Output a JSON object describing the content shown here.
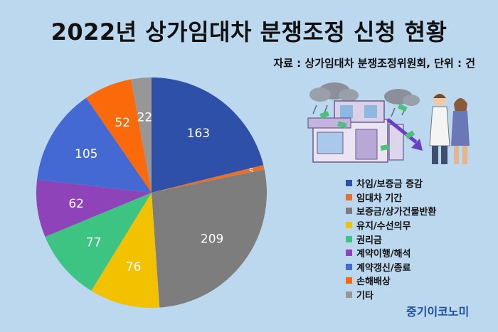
{
  "title": "2022년 상가임대차 분쟁조정 신청 현황",
  "source": "자료 : 상가임대차 분쟁조정위원회, 단위 : 건",
  "brand": "중기이코노미",
  "chart_data": {
    "type": "pie",
    "title": "2022년 상가임대차 분쟁조정 신청 현황",
    "unit": "건",
    "start_angle_deg": 0,
    "direction": "clockwise",
    "legend_position": "right",
    "categories": [
      "차임/보증금 증감",
      "임대차 기간",
      "보증금/상가건물반환",
      "유지/수선의무",
      "권리금",
      "계약이행/해석",
      "계약갱신/종료",
      "손해배상",
      "기타"
    ],
    "values": [
      163,
      5,
      209,
      76,
      77,
      62,
      105,
      52,
      22
    ],
    "colors": [
      "#2e50a8",
      "#e8702a",
      "#7d7d7d",
      "#f2c200",
      "#3ec482",
      "#8e44b8",
      "#4469d3",
      "#fa6a0a",
      "#979797"
    ]
  }
}
